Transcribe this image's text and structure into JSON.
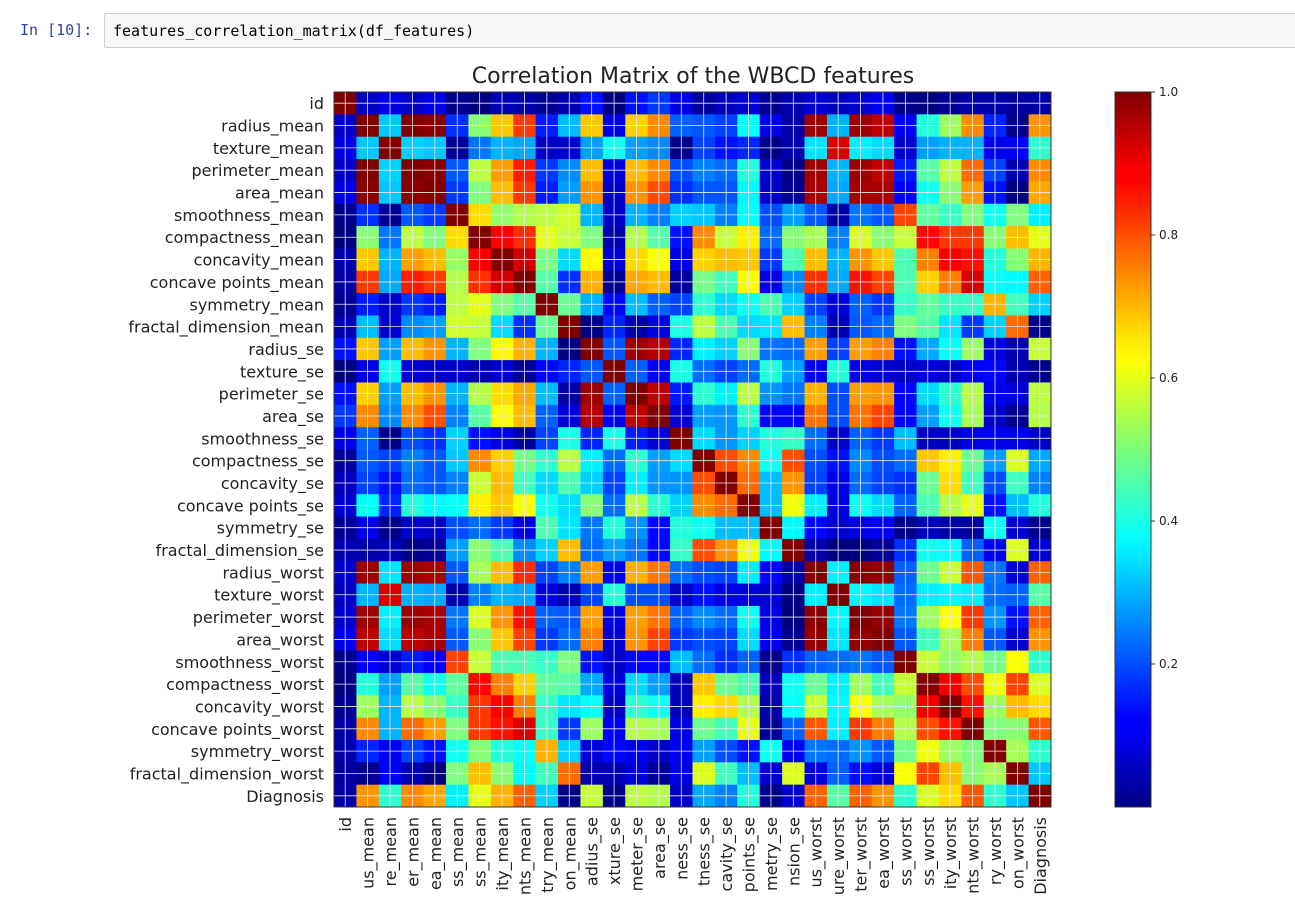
{
  "cell": {
    "prompt": "In [10]:",
    "code": "features_correlation_matrix(df_features)"
  },
  "chart_data": {
    "type": "heatmap",
    "title": "Correlation Matrix of the WBCD features",
    "labels": [
      "id",
      "radius_mean",
      "texture_mean",
      "perimeter_mean",
      "area_mean",
      "smoothness_mean",
      "compactness_mean",
      "concavity_mean",
      "concave points_mean",
      "symmetry_mean",
      "fractal_dimension_mean",
      "radius_se",
      "texture_se",
      "perimeter_se",
      "area_se",
      "smoothness_se",
      "compactness_se",
      "concavity_se",
      "concave points_se",
      "symmetry_se",
      "fractal_dimension_se",
      "radius_worst",
      "texture_worst",
      "perimeter_worst",
      "area_worst",
      "smoothness_worst",
      "compactness_worst",
      "concavity_worst",
      "concave points_worst",
      "symmetry_worst",
      "fractal_dimension_worst",
      "Diagnosis"
    ],
    "x_tick_labels_visible": [
      "id",
      "us_mean",
      "re_mean",
      "er_mean",
      "ea_mean",
      "ss_mean",
      "ss_mean",
      "ity_mean",
      "nts_mean",
      "try_mean",
      "on_mean",
      "adius_se",
      "xture_se",
      "meter_se",
      "area_se",
      "ness_se",
      "tness_se",
      "cavity_se",
      "points_se",
      "metry_se",
      "nsion_se",
      "us_worst",
      "ure_worst",
      "ter_worst",
      "ea_worst",
      "ss_worst",
      "ss_worst",
      "ity_worst",
      "nts_worst",
      "ry_worst",
      "on_worst",
      "Diagnosis"
    ],
    "colorbar": {
      "min": 0.0,
      "max": 1.0,
      "ticks": [
        "0.2",
        "0.4",
        "0.6",
        "0.8",
        "1.0"
      ],
      "colormap": "jet"
    },
    "grid": true,
    "matrix": [
      [
        1.0,
        0.07,
        0.1,
        0.07,
        0.1,
        0.01,
        0.0,
        0.05,
        0.04,
        0.02,
        0.05,
        0.14,
        0.0,
        0.14,
        0.18,
        0.1,
        0.03,
        0.06,
        0.08,
        0.02,
        0.05,
        0.08,
        0.06,
        0.08,
        0.11,
        0.01,
        0.0,
        0.02,
        0.04,
        0.04,
        0.03,
        0.04
      ],
      [
        0.07,
        1.0,
        0.32,
        1.0,
        0.99,
        0.17,
        0.51,
        0.68,
        0.82,
        0.15,
        0.31,
        0.68,
        0.1,
        0.67,
        0.74,
        0.22,
        0.21,
        0.19,
        0.38,
        0.1,
        0.04,
        0.97,
        0.3,
        0.97,
        0.94,
        0.12,
        0.41,
        0.53,
        0.74,
        0.16,
        0.01,
        0.73
      ],
      [
        0.1,
        0.32,
        1.0,
        0.33,
        0.32,
        0.02,
        0.24,
        0.3,
        0.29,
        0.07,
        0.08,
        0.28,
        0.39,
        0.28,
        0.26,
        0.01,
        0.19,
        0.14,
        0.16,
        0.01,
        0.05,
        0.35,
        0.91,
        0.36,
        0.34,
        0.08,
        0.28,
        0.3,
        0.3,
        0.11,
        0.12,
        0.42
      ],
      [
        0.07,
        1.0,
        0.33,
        1.0,
        0.99,
        0.21,
        0.56,
        0.72,
        0.85,
        0.18,
        0.26,
        0.69,
        0.09,
        0.69,
        0.74,
        0.2,
        0.25,
        0.23,
        0.41,
        0.08,
        0.01,
        0.97,
        0.3,
        0.97,
        0.94,
        0.15,
        0.46,
        0.56,
        0.77,
        0.19,
        0.05,
        0.74
      ],
      [
        0.1,
        0.99,
        0.32,
        0.99,
        1.0,
        0.18,
        0.5,
        0.69,
        0.82,
        0.15,
        0.28,
        0.73,
        0.07,
        0.73,
        0.8,
        0.17,
        0.21,
        0.21,
        0.37,
        0.07,
        0.02,
        0.96,
        0.29,
        0.96,
        0.96,
        0.12,
        0.39,
        0.51,
        0.72,
        0.14,
        0.0,
        0.71
      ],
      [
        0.01,
        0.17,
        0.02,
        0.21,
        0.18,
        1.0,
        0.66,
        0.52,
        0.55,
        0.56,
        0.58,
        0.3,
        0.07,
        0.3,
        0.25,
        0.33,
        0.32,
        0.25,
        0.38,
        0.2,
        0.28,
        0.21,
        0.04,
        0.24,
        0.21,
        0.81,
        0.47,
        0.43,
        0.5,
        0.39,
        0.5,
        0.36
      ],
      [
        0.0,
        0.51,
        0.24,
        0.56,
        0.5,
        0.66,
        1.0,
        0.88,
        0.83,
        0.6,
        0.57,
        0.5,
        0.05,
        0.55,
        0.46,
        0.14,
        0.74,
        0.57,
        0.64,
        0.23,
        0.51,
        0.54,
        0.25,
        0.59,
        0.51,
        0.57,
        0.87,
        0.82,
        0.82,
        0.51,
        0.69,
        0.6
      ],
      [
        0.05,
        0.68,
        0.3,
        0.72,
        0.69,
        0.52,
        0.88,
        1.0,
        0.92,
        0.5,
        0.34,
        0.63,
        0.08,
        0.66,
        0.62,
        0.1,
        0.67,
        0.69,
        0.68,
        0.18,
        0.45,
        0.69,
        0.3,
        0.73,
        0.68,
        0.45,
        0.75,
        0.88,
        0.86,
        0.41,
        0.51,
        0.7
      ],
      [
        0.04,
        0.82,
        0.29,
        0.85,
        0.82,
        0.55,
        0.83,
        0.92,
        1.0,
        0.46,
        0.17,
        0.7,
        0.02,
        0.71,
        0.69,
        0.03,
        0.49,
        0.44,
        0.62,
        0.1,
        0.26,
        0.83,
        0.29,
        0.86,
        0.81,
        0.45,
        0.67,
        0.75,
        0.91,
        0.38,
        0.37,
        0.78
      ],
      [
        0.02,
        0.15,
        0.07,
        0.18,
        0.15,
        0.56,
        0.6,
        0.5,
        0.46,
        1.0,
        0.48,
        0.3,
        0.13,
        0.31,
        0.22,
        0.19,
        0.42,
        0.34,
        0.39,
        0.45,
        0.33,
        0.19,
        0.09,
        0.22,
        0.18,
        0.43,
        0.47,
        0.43,
        0.43,
        0.7,
        0.44,
        0.33
      ],
      [
        0.05,
        0.31,
        0.08,
        0.26,
        0.28,
        0.58,
        0.57,
        0.34,
        0.17,
        0.48,
        1.0,
        0.0,
        0.16,
        0.04,
        0.09,
        0.4,
        0.56,
        0.45,
        0.34,
        0.35,
        0.69,
        0.25,
        0.05,
        0.21,
        0.23,
        0.5,
        0.46,
        0.35,
        0.18,
        0.33,
        0.77,
        0.01
      ],
      [
        0.14,
        0.68,
        0.28,
        0.69,
        0.73,
        0.3,
        0.5,
        0.63,
        0.7,
        0.3,
        0.0,
        1.0,
        0.21,
        0.97,
        0.95,
        0.16,
        0.36,
        0.33,
        0.51,
        0.24,
        0.23,
        0.72,
        0.19,
        0.72,
        0.75,
        0.14,
        0.29,
        0.38,
        0.53,
        0.09,
        0.05,
        0.57
      ],
      [
        0.0,
        0.1,
        0.39,
        0.09,
        0.07,
        0.07,
        0.05,
        0.08,
        0.02,
        0.13,
        0.16,
        0.21,
        1.0,
        0.22,
        0.11,
        0.4,
        0.23,
        0.19,
        0.23,
        0.41,
        0.28,
        0.11,
        0.41,
        0.1,
        0.08,
        0.07,
        0.09,
        0.07,
        0.12,
        0.13,
        0.05,
        0.01
      ],
      [
        0.14,
        0.67,
        0.28,
        0.69,
        0.73,
        0.3,
        0.55,
        0.66,
        0.71,
        0.31,
        0.04,
        0.97,
        0.22,
        1.0,
        0.94,
        0.15,
        0.42,
        0.36,
        0.56,
        0.27,
        0.24,
        0.7,
        0.2,
        0.72,
        0.73,
        0.13,
        0.34,
        0.42,
        0.55,
        0.11,
        0.09,
        0.56
      ],
      [
        0.18,
        0.74,
        0.26,
        0.74,
        0.8,
        0.25,
        0.46,
        0.62,
        0.69,
        0.22,
        0.09,
        0.95,
        0.11,
        0.94,
        1.0,
        0.08,
        0.28,
        0.27,
        0.42,
        0.13,
        0.13,
        0.76,
        0.2,
        0.76,
        0.81,
        0.13,
        0.28,
        0.39,
        0.54,
        0.07,
        0.02,
        0.55
      ],
      [
        0.1,
        0.22,
        0.01,
        0.2,
        0.17,
        0.33,
        0.14,
        0.1,
        0.03,
        0.19,
        0.4,
        0.16,
        0.4,
        0.15,
        0.08,
        1.0,
        0.34,
        0.27,
        0.33,
        0.41,
        0.43,
        0.23,
        0.07,
        0.22,
        0.18,
        0.31,
        0.06,
        0.06,
        0.1,
        0.11,
        0.1,
        0.07
      ],
      [
        0.03,
        0.21,
        0.19,
        0.25,
        0.21,
        0.32,
        0.74,
        0.67,
        0.49,
        0.42,
        0.56,
        0.36,
        0.23,
        0.42,
        0.28,
        0.34,
        1.0,
        0.8,
        0.74,
        0.39,
        0.8,
        0.2,
        0.14,
        0.26,
        0.2,
        0.23,
        0.68,
        0.64,
        0.48,
        0.28,
        0.59,
        0.29
      ],
      [
        0.06,
        0.19,
        0.14,
        0.23,
        0.21,
        0.25,
        0.57,
        0.69,
        0.44,
        0.34,
        0.45,
        0.33,
        0.19,
        0.36,
        0.27,
        0.27,
        0.8,
        1.0,
        0.77,
        0.31,
        0.73,
        0.19,
        0.1,
        0.23,
        0.19,
        0.17,
        0.48,
        0.66,
        0.44,
        0.2,
        0.44,
        0.25
      ],
      [
        0.08,
        0.38,
        0.16,
        0.41,
        0.37,
        0.38,
        0.64,
        0.68,
        0.62,
        0.39,
        0.34,
        0.51,
        0.23,
        0.56,
        0.42,
        0.33,
        0.74,
        0.77,
        1.0,
        0.31,
        0.61,
        0.36,
        0.09,
        0.39,
        0.34,
        0.22,
        0.45,
        0.55,
        0.6,
        0.14,
        0.31,
        0.41
      ],
      [
        0.02,
        0.1,
        0.01,
        0.08,
        0.07,
        0.2,
        0.23,
        0.18,
        0.1,
        0.45,
        0.35,
        0.24,
        0.41,
        0.27,
        0.13,
        0.41,
        0.39,
        0.31,
        0.31,
        1.0,
        0.37,
        0.13,
        0.08,
        0.1,
        0.11,
        0.01,
        0.06,
        0.04,
        0.03,
        0.39,
        0.08,
        0.01
      ],
      [
        0.05,
        0.04,
        0.05,
        0.01,
        0.02,
        0.28,
        0.51,
        0.45,
        0.26,
        0.33,
        0.69,
        0.23,
        0.28,
        0.24,
        0.13,
        0.43,
        0.8,
        0.73,
        0.61,
        0.37,
        1.0,
        0.04,
        0.0,
        0.0,
        0.02,
        0.17,
        0.39,
        0.38,
        0.22,
        0.11,
        0.59,
        0.08
      ],
      [
        0.08,
        0.97,
        0.35,
        0.97,
        0.96,
        0.21,
        0.54,
        0.69,
        0.83,
        0.19,
        0.25,
        0.72,
        0.11,
        0.7,
        0.76,
        0.23,
        0.2,
        0.19,
        0.36,
        0.13,
        0.04,
        1.0,
        0.36,
        0.99,
        0.98,
        0.22,
        0.48,
        0.57,
        0.79,
        0.24,
        0.09,
        0.78
      ],
      [
        0.06,
        0.3,
        0.91,
        0.3,
        0.29,
        0.04,
        0.25,
        0.3,
        0.29,
        0.09,
        0.05,
        0.19,
        0.41,
        0.2,
        0.2,
        0.07,
        0.14,
        0.1,
        0.09,
        0.08,
        0.0,
        0.36,
        1.0,
        0.37,
        0.35,
        0.23,
        0.36,
        0.37,
        0.36,
        0.23,
        0.22,
        0.46
      ],
      [
        0.08,
        0.97,
        0.36,
        0.97,
        0.96,
        0.24,
        0.59,
        0.73,
        0.86,
        0.22,
        0.21,
        0.72,
        0.1,
        0.72,
        0.76,
        0.22,
        0.26,
        0.23,
        0.39,
        0.1,
        0.0,
        0.99,
        0.37,
        1.0,
        0.98,
        0.24,
        0.53,
        0.62,
        0.82,
        0.27,
        0.14,
        0.78
      ],
      [
        0.11,
        0.94,
        0.34,
        0.94,
        0.96,
        0.21,
        0.51,
        0.68,
        0.81,
        0.18,
        0.23,
        0.75,
        0.08,
        0.73,
        0.81,
        0.18,
        0.2,
        0.19,
        0.34,
        0.11,
        0.02,
        0.98,
        0.35,
        0.98,
        1.0,
        0.21,
        0.44,
        0.54,
        0.75,
        0.21,
        0.08,
        0.73
      ],
      [
        0.01,
        0.12,
        0.08,
        0.15,
        0.12,
        0.81,
        0.57,
        0.45,
        0.45,
        0.43,
        0.5,
        0.14,
        0.07,
        0.13,
        0.13,
        0.31,
        0.23,
        0.17,
        0.22,
        0.01,
        0.17,
        0.22,
        0.23,
        0.24,
        0.21,
        1.0,
        0.57,
        0.52,
        0.55,
        0.49,
        0.62,
        0.42
      ],
      [
        0.0,
        0.41,
        0.28,
        0.46,
        0.39,
        0.47,
        0.87,
        0.75,
        0.67,
        0.47,
        0.46,
        0.29,
        0.09,
        0.34,
        0.28,
        0.06,
        0.68,
        0.48,
        0.45,
        0.06,
        0.39,
        0.48,
        0.36,
        0.53,
        0.44,
        0.57,
        1.0,
        0.89,
        0.8,
        0.61,
        0.81,
        0.59
      ],
      [
        0.02,
        0.53,
        0.3,
        0.56,
        0.51,
        0.43,
        0.82,
        0.88,
        0.75,
        0.43,
        0.35,
        0.38,
        0.07,
        0.42,
        0.39,
        0.06,
        0.64,
        0.66,
        0.55,
        0.04,
        0.38,
        0.57,
        0.37,
        0.62,
        0.54,
        0.52,
        0.89,
        1.0,
        0.86,
        0.53,
        0.69,
        0.66
      ],
      [
        0.04,
        0.74,
        0.3,
        0.77,
        0.72,
        0.5,
        0.82,
        0.86,
        0.91,
        0.43,
        0.18,
        0.53,
        0.12,
        0.55,
        0.54,
        0.1,
        0.48,
        0.44,
        0.6,
        0.03,
        0.22,
        0.79,
        0.36,
        0.82,
        0.75,
        0.55,
        0.8,
        0.86,
        1.0,
        0.5,
        0.51,
        0.79
      ],
      [
        0.04,
        0.16,
        0.11,
        0.19,
        0.14,
        0.39,
        0.51,
        0.41,
        0.38,
        0.7,
        0.33,
        0.09,
        0.13,
        0.11,
        0.07,
        0.11,
        0.28,
        0.2,
        0.14,
        0.39,
        0.11,
        0.24,
        0.23,
        0.27,
        0.21,
        0.49,
        0.61,
        0.53,
        0.5,
        1.0,
        0.54,
        0.42
      ],
      [
        0.03,
        0.01,
        0.12,
        0.05,
        0.0,
        0.5,
        0.69,
        0.51,
        0.37,
        0.44,
        0.77,
        0.05,
        0.05,
        0.09,
        0.02,
        0.1,
        0.59,
        0.44,
        0.31,
        0.08,
        0.59,
        0.09,
        0.22,
        0.14,
        0.08,
        0.62,
        0.81,
        0.69,
        0.51,
        0.54,
        1.0,
        0.32
      ],
      [
        0.04,
        0.73,
        0.42,
        0.74,
        0.71,
        0.36,
        0.6,
        0.7,
        0.78,
        0.33,
        0.01,
        0.57,
        0.01,
        0.56,
        0.55,
        0.07,
        0.29,
        0.25,
        0.41,
        0.01,
        0.08,
        0.78,
        0.46,
        0.78,
        0.73,
        0.42,
        0.59,
        0.66,
        0.79,
        0.42,
        0.32,
        1.0
      ]
    ]
  }
}
